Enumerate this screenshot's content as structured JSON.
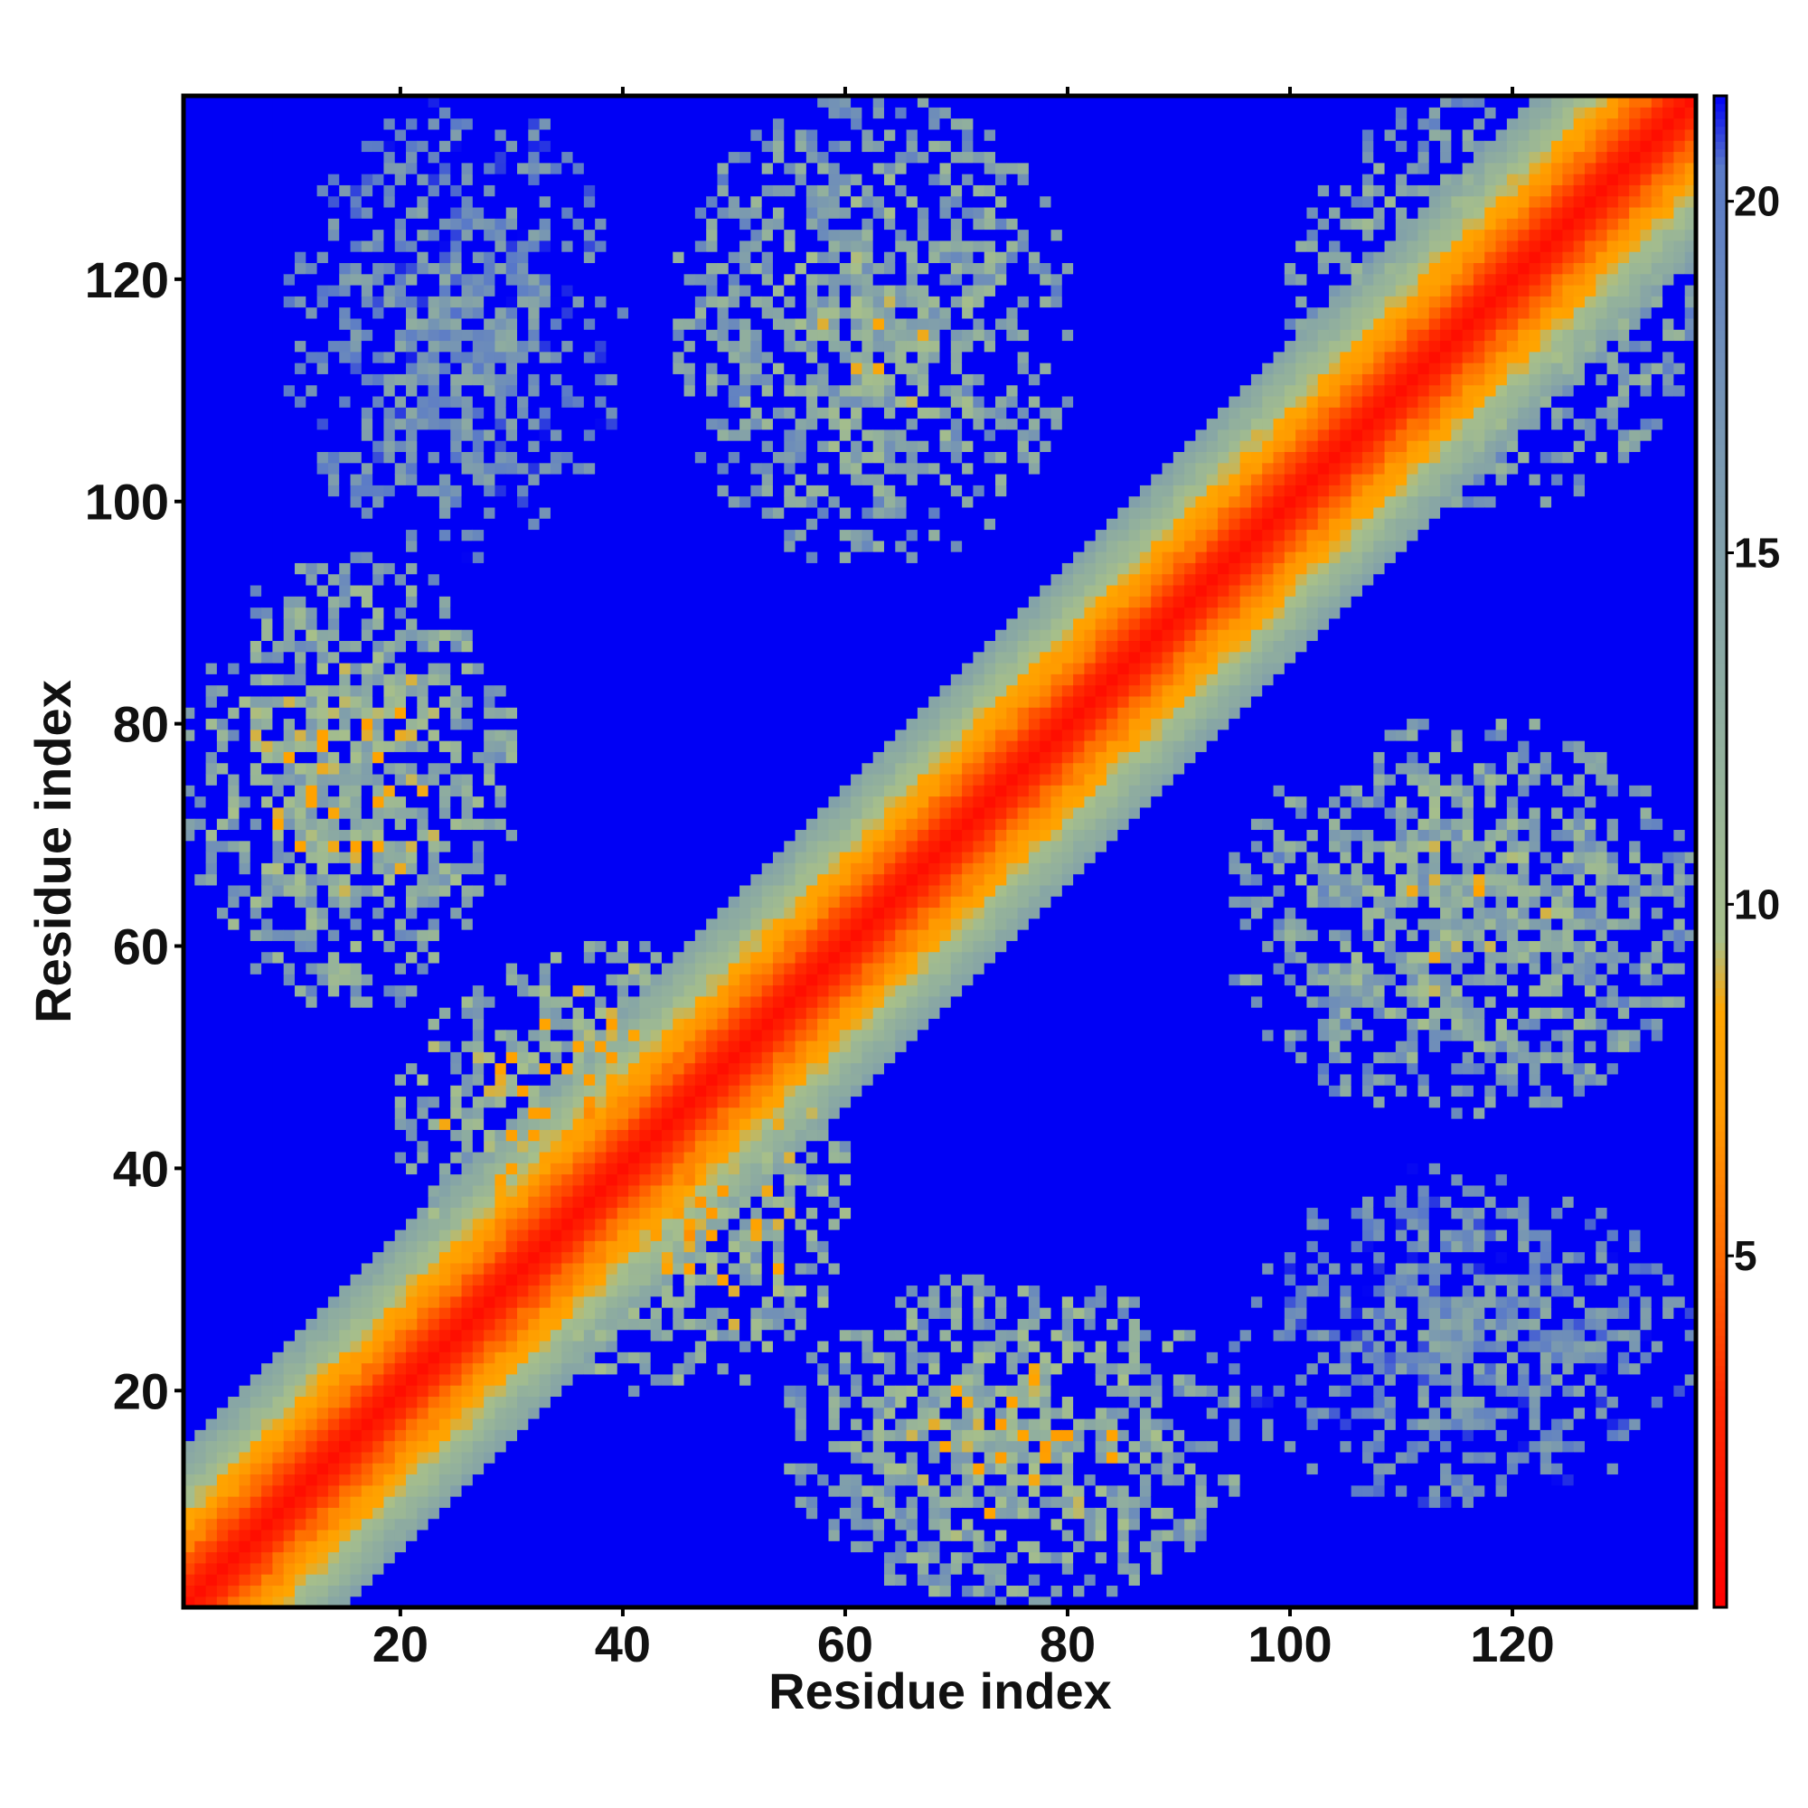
{
  "chart_data": {
    "type": "heatmap",
    "title": "",
    "xlabel": "Residue index",
    "ylabel": "Residue index",
    "xlim": [
      1,
      136
    ],
    "ylim": [
      1,
      136
    ],
    "x_ticks": [
      20,
      40,
      60,
      80,
      100,
      120
    ],
    "y_ticks": [
      20,
      40,
      60,
      80,
      100,
      120
    ],
    "x_tick_labels": [
      "20",
      "40",
      "60",
      "80",
      "100",
      "120"
    ],
    "y_tick_labels": [
      "20",
      "40",
      "60",
      "80",
      "100",
      "120"
    ],
    "grid": false,
    "value_range": [
      0,
      21.5
    ],
    "description_of_values": "symmetric residue-residue distance map; low values (red) along the diagonal, high values (blue) far from contacts",
    "diagonal_band": {
      "value_at_diagonal": 1,
      "half_width_residues": 14
    },
    "contact_regions": [
      {
        "x_range": [
          1,
          30
        ],
        "y_range": [
          55,
          95
        ],
        "mean_value": 11
      },
      {
        "x_range": [
          55,
          95
        ],
        "y_range": [
          1,
          30
        ],
        "mean_value": 11
      },
      {
        "x_range": [
          45,
          80
        ],
        "y_range": [
          95,
          136
        ],
        "mean_value": 12
      },
      {
        "x_range": [
          95,
          136
        ],
        "y_range": [
          45,
          80
        ],
        "mean_value": 12
      },
      {
        "x_range": [
          30,
          60
        ],
        "y_range": [
          20,
          55
        ],
        "mean_value": 10
      },
      {
        "x_range": [
          20,
          55
        ],
        "y_range": [
          30,
          60
        ],
        "mean_value": 10
      },
      {
        "x_range": [
          100,
          136
        ],
        "y_range": [
          100,
          136
        ],
        "mean_value": 12
      },
      {
        "x_range": [
          10,
          40
        ],
        "y_range": [
          95,
          136
        ],
        "mean_value": 16
      },
      {
        "x_range": [
          95,
          136
        ],
        "y_range": [
          10,
          40
        ],
        "mean_value": 16
      }
    ],
    "colorbar": {
      "ticks": [
        5,
        10,
        15,
        20
      ],
      "tick_labels": [
        "5",
        "10",
        "15",
        "20"
      ],
      "range": [
        0,
        21.5
      ],
      "colors": [
        {
          "value": 0,
          "color": "#ff0000"
        },
        {
          "value": 3,
          "color": "#ff2a00"
        },
        {
          "value": 5,
          "color": "#ff6a00"
        },
        {
          "value": 7,
          "color": "#ff9a00"
        },
        {
          "value": 8.5,
          "color": "#ffa500"
        },
        {
          "value": 9.5,
          "color": "#a7bf8a"
        },
        {
          "value": 12,
          "color": "#93b19c"
        },
        {
          "value": 17,
          "color": "#7594b4"
        },
        {
          "value": 20.5,
          "color": "#5a7ac8"
        },
        {
          "value": 21.5,
          "color": "#0000f5"
        }
      ]
    },
    "background_color": "#0000f5"
  }
}
